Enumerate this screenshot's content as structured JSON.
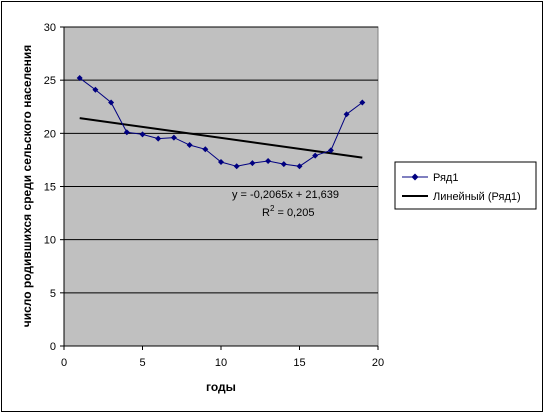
{
  "chart_data": {
    "type": "line",
    "title": "",
    "xlabel": "годы",
    "ylabel": "число родившихся среди сельского населения",
    "xlim": [
      0,
      20
    ],
    "ylim": [
      0,
      30
    ],
    "x_ticks": [
      "0",
      "5",
      "10",
      "15",
      "20"
    ],
    "y_ticks": [
      "0",
      "5",
      "10",
      "15",
      "20",
      "25",
      "30"
    ],
    "grid": "horizontal",
    "legend_position": "right",
    "plot_background": "#c0c0c0",
    "series": [
      {
        "name": "Ряд1",
        "color": "#000080",
        "marker": "diamond",
        "x": [
          1,
          2,
          3,
          4,
          5,
          6,
          7,
          8,
          9,
          10,
          11,
          12,
          13,
          14,
          15,
          16,
          17,
          18,
          19
        ],
        "y": [
          25.2,
          24.1,
          22.9,
          20.1,
          19.9,
          19.5,
          19.6,
          18.9,
          18.5,
          17.3,
          16.9,
          17.2,
          17.4,
          17.1,
          16.9,
          17.9,
          18.4,
          21.8,
          22.9
        ]
      }
    ],
    "trendline": {
      "name": "Линейный (Ряд1)",
      "color": "#000000",
      "slope": -0.2065,
      "intercept": 21.639,
      "x_range": [
        1,
        19
      ]
    },
    "annotations": {
      "equation": "y = -0,2065x + 21,639",
      "r2_prefix": "R",
      "r2_sup": "2",
      "r2_value": " = 0,205"
    }
  }
}
